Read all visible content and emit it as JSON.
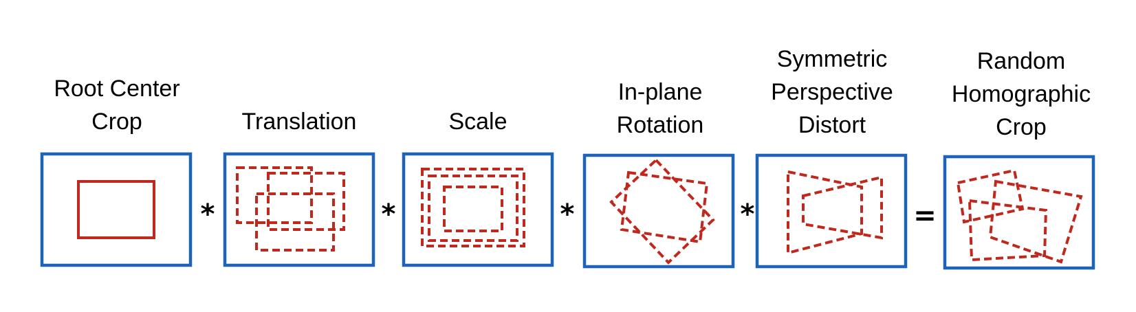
{
  "colors": {
    "frame": "#1f63b6",
    "crop": "#c0281e",
    "text": "#000000"
  },
  "panels": [
    {
      "id": "root-center-crop",
      "label_lines": [
        "Root Center",
        "Crop"
      ]
    },
    {
      "id": "translation",
      "label_lines": [
        "Translation"
      ]
    },
    {
      "id": "scale",
      "label_lines": [
        "Scale"
      ]
    },
    {
      "id": "in-plane-rotation",
      "label_lines": [
        "In-plane",
        "Rotation"
      ]
    },
    {
      "id": "symmetric-perspective-distort",
      "label_lines": [
        "Symmetric",
        "Perspective",
        "Distort"
      ]
    },
    {
      "id": "random-homographic-crop",
      "label_lines": [
        "Random",
        "Homographic",
        "Crop"
      ]
    }
  ],
  "operators": [
    "*",
    "*",
    "*",
    "*",
    "="
  ]
}
